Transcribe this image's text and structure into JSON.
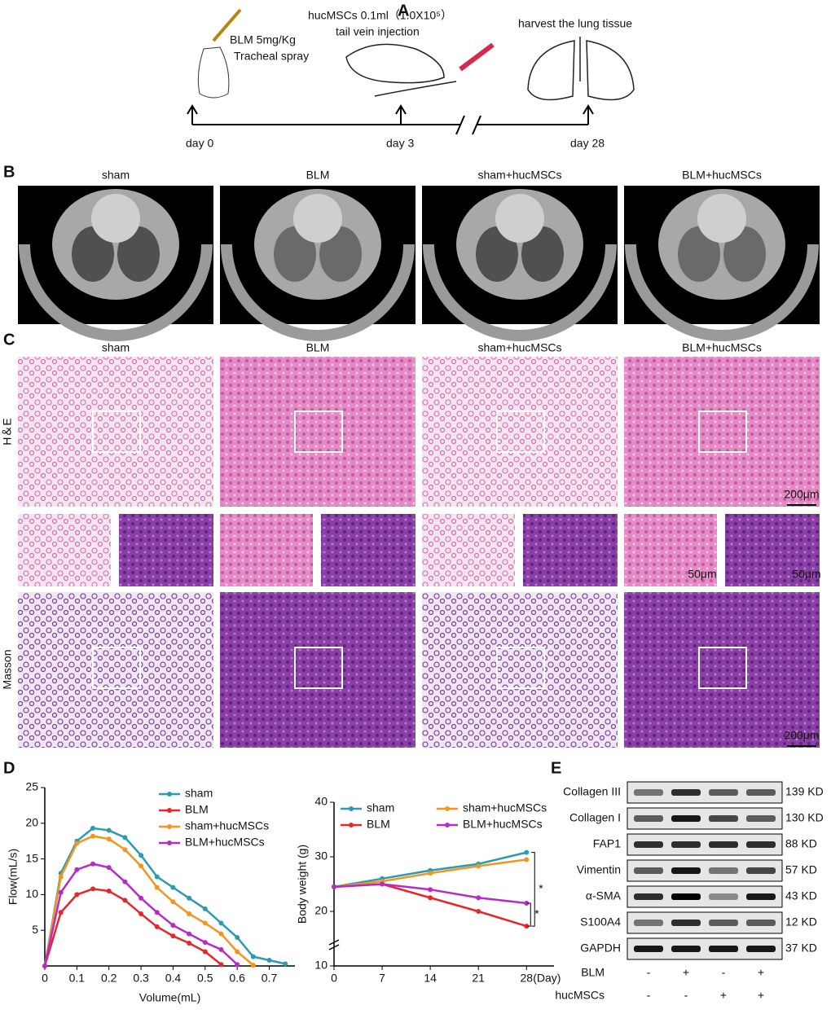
{
  "panel_labels": [
    "A",
    "B",
    "C",
    "D",
    "E"
  ],
  "timeline": {
    "bleomycin": [
      "BLM 5mg/Kg",
      "Tracheal spray"
    ],
    "injection": [
      "hucMSCs 0.1ml（1.0X10⁵）",
      "tail vein injection"
    ],
    "harvest": "harvest the lung tissue",
    "days": [
      "day 0",
      "day 3",
      "day 28"
    ]
  },
  "ct": {
    "groups": [
      "sham",
      "BLM",
      "sham+hucMSCs",
      "BLM+hucMSCs"
    ]
  },
  "histology": {
    "groups": [
      "sham",
      "BLM",
      "sham+hucMSCs",
      "BLM+hucMSCs"
    ],
    "rows": [
      "H＆E",
      "Masson"
    ],
    "scale_large": "200μm",
    "scale_small": "50μm"
  },
  "chart_data": [
    {
      "type": "line",
      "xlabel": "Volume(mL)",
      "ylabel": "Flow(mL/s)",
      "x": [
        0,
        0.05,
        0.1,
        0.15,
        0.2,
        0.25,
        0.3,
        0.35,
        0.4,
        0.45,
        0.5,
        0.55,
        0.6,
        0.65,
        0.7,
        0.75
      ],
      "xlim": [
        0,
        0.78
      ],
      "xticks": [
        0,
        0.1,
        0.2,
        0.3,
        0.4,
        0.5,
        0.6,
        0.7
      ],
      "ylim": [
        0,
        25
      ],
      "yticks": [
        5,
        10,
        15,
        20,
        25
      ],
      "legend": "upper right",
      "series": [
        {
          "name": "sham",
          "color": "#2a9bb0",
          "values": [
            0,
            13,
            17.5,
            19.3,
            19,
            18,
            15.5,
            12.5,
            11,
            9.5,
            8,
            6,
            4,
            1.3,
            0.8,
            0.3
          ]
        },
        {
          "name": "BLM",
          "color": "#e8262a",
          "values": [
            0,
            7.5,
            10,
            10.8,
            10.5,
            9.2,
            7.3,
            5.5,
            4.2,
            3.2,
            2,
            0.2,
            null,
            null,
            null,
            null
          ]
        },
        {
          "name": "sham+hucMSCs",
          "color": "#f7931e",
          "values": [
            0,
            12.5,
            17.2,
            18.2,
            17.8,
            16.3,
            14,
            11,
            9,
            7.3,
            6,
            4.5,
            2,
            0.1,
            null,
            null
          ]
        },
        {
          "name": "BLM+hucMSCs",
          "color": "#b52bc8",
          "values": [
            0,
            10.3,
            13.5,
            14.3,
            13.8,
            11.8,
            9.5,
            7.5,
            5.7,
            4.5,
            3.3,
            2.3,
            0.2,
            null,
            null,
            null
          ]
        }
      ]
    },
    {
      "type": "line",
      "xlabel": "(Day)",
      "ylabel": "Body weight (g)",
      "x": [
        0,
        7,
        14,
        21,
        28
      ],
      "xlim": [
        0,
        32
      ],
      "xticks": [
        0,
        7,
        14,
        21,
        28
      ],
      "ylim": [
        10,
        40
      ],
      "yticks": [
        10,
        20,
        30,
        40
      ],
      "legend": "upper left",
      "annotations": [
        "*",
        "*"
      ],
      "series": [
        {
          "name": "sham",
          "color": "#2a9bb0",
          "values": [
            24.5,
            26,
            27.5,
            28.7,
            30.8
          ]
        },
        {
          "name": "BLM",
          "color": "#e8262a",
          "values": [
            24.5,
            25,
            22.5,
            20,
            17.3
          ]
        },
        {
          "name": "sham+hucMSCs",
          "color": "#f7931e",
          "values": [
            24.5,
            25.5,
            27,
            28.3,
            29.5
          ]
        },
        {
          "name": "BLM+hucMSCs",
          "color": "#b52bc8",
          "values": [
            24.5,
            25,
            24,
            22.5,
            21.5
          ]
        }
      ]
    }
  ],
  "western": {
    "rows": [
      {
        "name": "Collagen III",
        "size": "139 KD"
      },
      {
        "name": "Collagen I",
        "size": "130 KD"
      },
      {
        "name": "FAP1",
        "size": "88 KD"
      },
      {
        "name": "Vimentin",
        "size": "57 KD"
      },
      {
        "name": "α-SMA",
        "size": "43 KD"
      },
      {
        "name": "S100A4",
        "size": "12 KD"
      },
      {
        "name": "GAPDH",
        "size": "37 KD"
      }
    ],
    "treatments": [
      {
        "name": "BLM",
        "lanes": [
          "-",
          "+",
          "-",
          "+"
        ]
      },
      {
        "name": "hucMSCs",
        "lanes": [
          "-",
          "-",
          "+",
          "+"
        ]
      }
    ]
  }
}
